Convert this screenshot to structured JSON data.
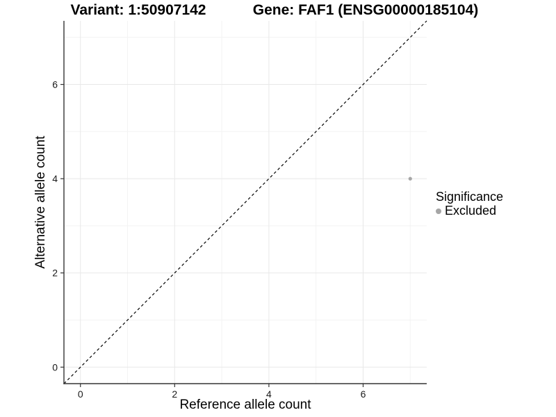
{
  "header": {
    "variant_title": "Variant: 1:50907142",
    "gene_title": "Gene: FAF1 (ENSG00000185104)"
  },
  "chart_data": {
    "type": "scatter",
    "xlabel": "Reference allele count",
    "ylabel": "Alternative allele count",
    "xlim": [
      -0.35,
      7.35
    ],
    "ylim": [
      -0.35,
      7.35
    ],
    "x_ticks": [
      0,
      2,
      4,
      6
    ],
    "y_ticks": [
      0,
      2,
      4,
      6
    ],
    "x_minor_ticks": [
      1,
      3,
      5,
      7
    ],
    "y_minor_ticks": [
      1,
      3,
      5,
      7
    ],
    "grid": "major+minor",
    "series": [
      {
        "name": "Excluded",
        "color": "#a6a6a6",
        "point_radius": 2.6,
        "points": [
          {
            "x": 7,
            "y": 4
          }
        ]
      }
    ],
    "reference_line": {
      "shape": "y=x",
      "style": "dashed",
      "color": "#000000",
      "from": [
        -0.35,
        -0.35
      ],
      "to": [
        7.35,
        7.35
      ]
    },
    "legend": {
      "title": "Significance",
      "position": "right",
      "items": [
        {
          "label": "Excluded",
          "color": "#a6a6a6"
        }
      ]
    },
    "colors": {
      "grid_major": "#e8e8e8",
      "grid_minor": "#f3f3f3",
      "axis_line": "#333333",
      "tick_mark": "#333333",
      "tick_text": "#1a1a1a"
    }
  }
}
